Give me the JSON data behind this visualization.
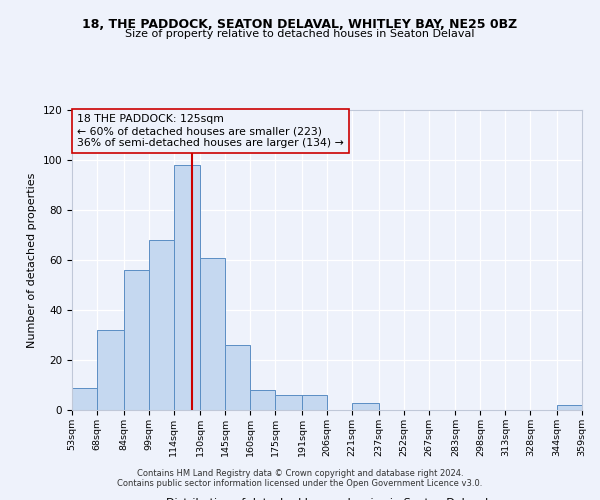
{
  "title1": "18, THE PADDOCK, SEATON DELAVAL, WHITLEY BAY, NE25 0BZ",
  "title2": "Size of property relative to detached houses in Seaton Delaval",
  "xlabel": "Distribution of detached houses by size in Seaton Delaval",
  "ylabel": "Number of detached properties",
  "bin_edges": [
    53,
    68,
    84,
    99,
    114,
    130,
    145,
    160,
    175,
    191,
    206,
    221,
    237,
    252,
    267,
    283,
    298,
    313,
    328,
    344,
    359
  ],
  "counts": [
    9,
    32,
    56,
    68,
    98,
    61,
    26,
    8,
    6,
    6,
    0,
    3,
    0,
    0,
    0,
    0,
    0,
    0,
    0,
    2
  ],
  "bar_facecolor": "#c5d8f0",
  "bar_edgecolor": "#5b8ec4",
  "vline_x": 125,
  "vline_color": "#cc0000",
  "annotation_line1": "18 THE PADDOCK: 125sqm",
  "annotation_line2": "← 60% of detached houses are smaller (223)",
  "annotation_line3": "36% of semi-detached houses are larger (134) →",
  "ylim": [
    0,
    120
  ],
  "yticks": [
    0,
    20,
    40,
    60,
    80,
    100,
    120
  ],
  "tick_labels": [
    "53sqm",
    "68sqm",
    "84sqm",
    "99sqm",
    "114sqm",
    "130sqm",
    "145sqm",
    "160sqm",
    "175sqm",
    "191sqm",
    "206sqm",
    "221sqm",
    "237sqm",
    "252sqm",
    "267sqm",
    "283sqm",
    "298sqm",
    "313sqm",
    "328sqm",
    "344sqm",
    "359sqm"
  ],
  "footnote1": "Contains HM Land Registry data © Crown copyright and database right 2024.",
  "footnote2": "Contains public sector information licensed under the Open Government Licence v3.0.",
  "bg_color": "#eef2fb",
  "grid_color": "#ffffff",
  "spine_color": "#c0c8d8"
}
